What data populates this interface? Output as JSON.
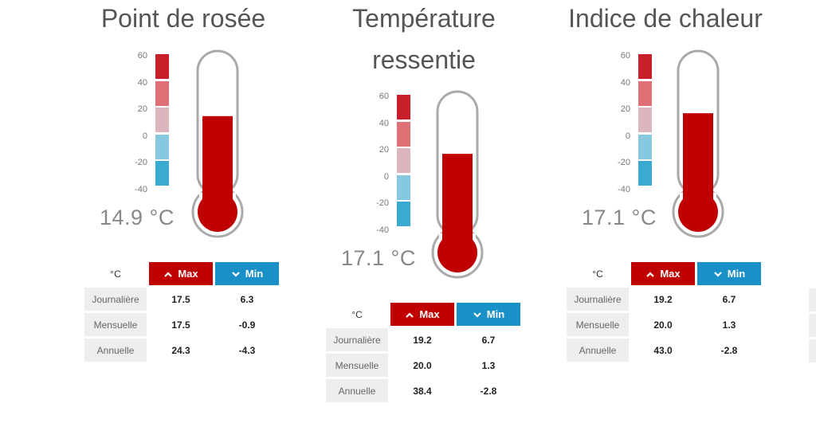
{
  "scale_labels": [
    "60",
    "40",
    "20",
    "0",
    "-20",
    "-40"
  ],
  "scale_colors": [
    "#c8202a",
    "#df7075",
    "#dcb6bd",
    "#86c8df",
    "#3aaad0"
  ],
  "fill_color": "#c00000",
  "header_colors": {
    "max": "#c00000",
    "min": "#1a90c8"
  },
  "table_headers": {
    "unit": "°C",
    "max": "Max",
    "min": "Min"
  },
  "row_labels": [
    "Journalière",
    "Mensuelle",
    "Annuelle"
  ],
  "panels": [
    {
      "title": "Point de rosée",
      "reading": "14.9 °C",
      "value": 14.9,
      "stats": [
        {
          "max": "17.5",
          "min": "6.3"
        },
        {
          "max": "17.5",
          "min": "-0.9"
        },
        {
          "max": "24.3",
          "min": "-4.3"
        }
      ]
    },
    {
      "title": "Température\nressentie",
      "reading": "17.1 °C",
      "value": 17.1,
      "stats": [
        {
          "max": "19.2",
          "min": "6.7"
        },
        {
          "max": "20.0",
          "min": "1.3"
        },
        {
          "max": "38.4",
          "min": "-2.8"
        }
      ]
    },
    {
      "title": "Indice de chaleur",
      "reading": "17.1 °C",
      "value": 17.1,
      "stats": [
        {
          "max": "19.2",
          "min": "6.7"
        },
        {
          "max": "20.0",
          "min": "1.3"
        },
        {
          "max": "43.0",
          "min": "-2.8"
        }
      ]
    }
  ]
}
